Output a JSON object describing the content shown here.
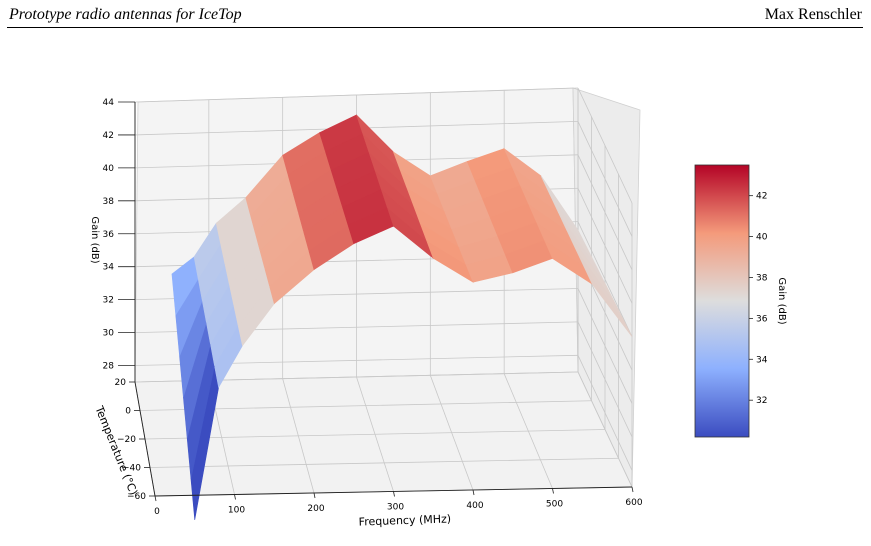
{
  "header": {
    "left": "Prototype radio antennas for IceTop",
    "right": "Max Renschler"
  },
  "chart_data": {
    "type": "surface3d",
    "title": "",
    "xlabel": "Frequency (MHz)",
    "ylabel": "Temperature (°C)",
    "zlabel": "Gain (dB)",
    "xlim": [
      0,
      600
    ],
    "ylim": [
      -60,
      20
    ],
    "zlim": [
      27,
      44
    ],
    "x_ticks": [
      "0",
      "100",
      "200",
      "300",
      "400",
      "500",
      "600"
    ],
    "y_ticks": [
      "20",
      "0",
      "−20",
      "−40",
      "−60"
    ],
    "z_ticks": [
      "44",
      "42",
      "40",
      "38",
      "36",
      "34",
      "32",
      "30",
      "28"
    ],
    "frequency": [
      50,
      80,
      110,
      150,
      200,
      250,
      300,
      350,
      400,
      450,
      500,
      550,
      600
    ],
    "temperature": [
      -60,
      20
    ],
    "gain": [
      [
        25.5,
        33.5,
        36.0,
        38.5,
        40.5,
        42.0,
        43.0,
        41.0,
        39.5,
        40.0,
        40.8,
        39.2,
        36.0
      ],
      [
        33.5,
        34.5,
        36.5,
        38.0,
        40.5,
        41.8,
        42.8,
        40.5,
        39.0,
        39.8,
        40.5,
        38.8,
        35.5
      ]
    ],
    "colorbar": {
      "label": "Gain (dB)",
      "ticks": [
        "42",
        "40",
        "38",
        "36",
        "34",
        "32"
      ],
      "range": [
        30.2,
        43.5
      ],
      "colormap": "coolwarm"
    },
    "grid": true
  }
}
